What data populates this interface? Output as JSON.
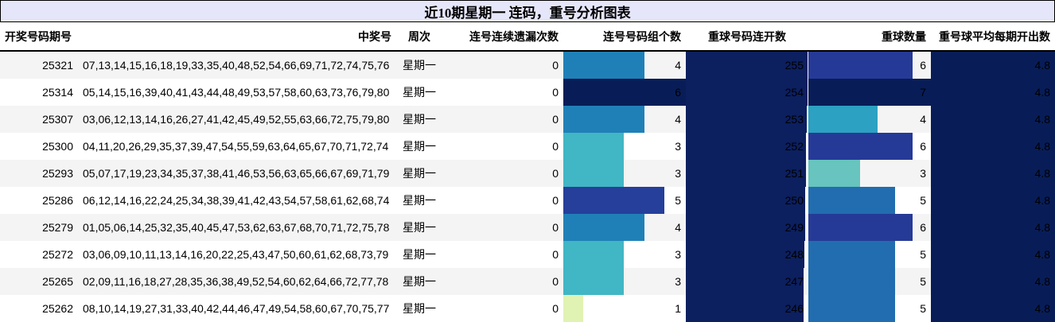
{
  "title": "近10期星期一 连码，重号分析图表",
  "columns": [
    {
      "key": "issue",
      "label": "开奖号码期号"
    },
    {
      "key": "numbers",
      "label": "中奖号"
    },
    {
      "key": "weekday",
      "label": "周次"
    },
    {
      "key": "consec_miss",
      "label": "连号连续遗漏次数"
    },
    {
      "key": "consec_groups",
      "label": "连号号码组个数"
    },
    {
      "key": "repeat_streak",
      "label": "重球号码连开数"
    },
    {
      "key": "repeat_count",
      "label": "重球数量"
    },
    {
      "key": "repeat_avg",
      "label": "重号球平均每期开出数"
    }
  ],
  "rows": [
    {
      "issue": "25321",
      "numbers": "07,13,14,15,16,18,19,33,35,40,48,52,54,66,69,71,72,74,75,76",
      "weekday": "星期一",
      "consec_miss": "0",
      "consec_groups": "4",
      "repeat_streak": "255",
      "repeat_count": "6",
      "repeat_avg": "4.8"
    },
    {
      "issue": "25314",
      "numbers": "05,14,15,16,39,40,41,43,44,48,49,53,57,58,60,63,73,76,79,80",
      "weekday": "星期一",
      "consec_miss": "0",
      "consec_groups": "6",
      "repeat_streak": "254",
      "repeat_count": "7",
      "repeat_avg": "4.8"
    },
    {
      "issue": "25307",
      "numbers": "03,06,12,13,14,16,26,27,41,42,45,49,52,55,63,66,72,75,79,80",
      "weekday": "星期一",
      "consec_miss": "0",
      "consec_groups": "4",
      "repeat_streak": "253",
      "repeat_count": "4",
      "repeat_avg": "4.8"
    },
    {
      "issue": "25300",
      "numbers": "04,11,20,26,29,35,37,39,47,54,55,59,63,64,65,67,70,71,72,74",
      "weekday": "星期一",
      "consec_miss": "0",
      "consec_groups": "3",
      "repeat_streak": "252",
      "repeat_count": "6",
      "repeat_avg": "4.8"
    },
    {
      "issue": "25293",
      "numbers": "05,07,17,19,23,34,35,37,38,41,46,53,56,63,65,66,67,69,71,79",
      "weekday": "星期一",
      "consec_miss": "0",
      "consec_groups": "3",
      "repeat_streak": "251",
      "repeat_count": "3",
      "repeat_avg": "4.8"
    },
    {
      "issue": "25286",
      "numbers": "06,12,14,16,22,24,25,34,38,39,41,42,43,54,57,58,61,62,68,74",
      "weekday": "星期一",
      "consec_miss": "0",
      "consec_groups": "5",
      "repeat_streak": "250",
      "repeat_count": "5",
      "repeat_avg": "4.8"
    },
    {
      "issue": "25279",
      "numbers": "01,05,06,14,25,32,35,40,45,47,53,62,63,67,68,70,71,72,75,78",
      "weekday": "星期一",
      "consec_miss": "0",
      "consec_groups": "4",
      "repeat_streak": "249",
      "repeat_count": "6",
      "repeat_avg": "4.8"
    },
    {
      "issue": "25272",
      "numbers": "03,06,09,10,11,13,14,16,20,22,25,43,47,50,60,61,62,68,73,79",
      "weekday": "星期一",
      "consec_miss": "0",
      "consec_groups": "3",
      "repeat_streak": "248",
      "repeat_count": "5",
      "repeat_avg": "4.8"
    },
    {
      "issue": "25265",
      "numbers": "02,09,11,16,18,27,28,35,36,38,49,52,54,60,62,64,66,72,77,78",
      "weekday": "星期一",
      "consec_miss": "0",
      "consec_groups": "3",
      "repeat_streak": "247",
      "repeat_count": "5",
      "repeat_avg": "4.8"
    },
    {
      "issue": "25262",
      "numbers": "08,10,14,19,27,31,33,40,42,44,46,47,49,54,58,60,67,70,75,77",
      "weekday": "星期一",
      "consec_miss": "0",
      "consec_groups": "1",
      "repeat_streak": "246",
      "repeat_count": "5",
      "repeat_avg": "4.8"
    }
  ],
  "bar_colors": {
    "consec_groups": {
      "1": "#e0f3b2",
      "3": "#41b6c4",
      "4": "#1f80b8",
      "5": "#253f9b",
      "6": "#081d58"
    },
    "repeat_count": {
      "3": "#67c4be",
      "4": "#2ca1c2",
      "5": "#216daf",
      "6": "#253a97",
      "7": "#081d58"
    },
    "repeat_streak": "#0c1f5f",
    "repeat_avg": "#081d58"
  },
  "chart_data": {
    "type": "table",
    "title": "近10期星期一 连码，重号分析图表",
    "columns": [
      "开奖号码期号",
      "中奖号",
      "周次",
      "连号连续遗漏次数",
      "连号号码组个数",
      "重球号码连开数",
      "重球数量",
      "重号球平均每期开出数"
    ],
    "categories": [
      "25321",
      "25314",
      "25307",
      "25300",
      "25293",
      "25286",
      "25279",
      "25272",
      "25265",
      "25262"
    ],
    "series": [
      {
        "name": "连号连续遗漏次数",
        "values": [
          0,
          0,
          0,
          0,
          0,
          0,
          0,
          0,
          0,
          0
        ]
      },
      {
        "name": "连号号码组个数",
        "values": [
          4,
          6,
          4,
          3,
          3,
          5,
          4,
          3,
          3,
          1
        ]
      },
      {
        "name": "重球号码连开数",
        "values": [
          255,
          254,
          253,
          252,
          251,
          250,
          249,
          248,
          247,
          246
        ]
      },
      {
        "name": "重球数量",
        "values": [
          6,
          7,
          4,
          6,
          3,
          5,
          6,
          5,
          5,
          5
        ]
      },
      {
        "name": "重号球平均每期开出数",
        "values": [
          4.8,
          4.8,
          4.8,
          4.8,
          4.8,
          4.8,
          4.8,
          4.8,
          4.8,
          4.8
        ]
      }
    ],
    "weekday": "星期一",
    "legend": "none",
    "grid": false
  }
}
